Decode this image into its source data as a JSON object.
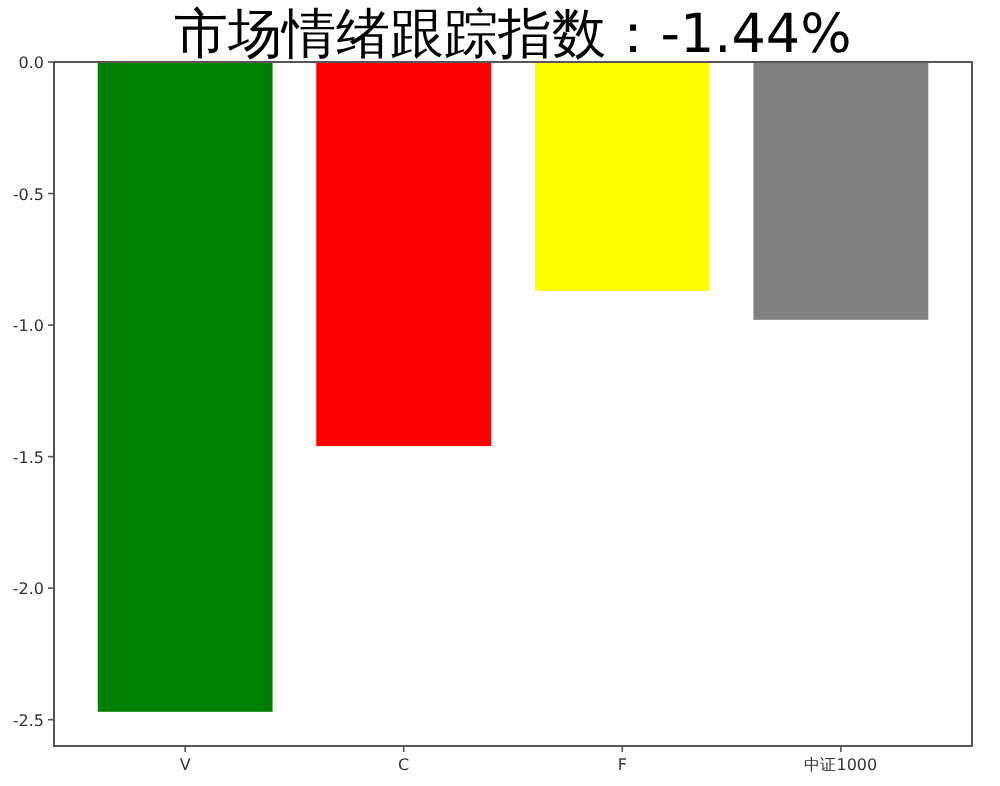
{
  "chart_data": {
    "type": "bar",
    "title": "市场情绪跟踪指数：-1.44%",
    "categories": [
      "V",
      "C",
      "F",
      "中证1000"
    ],
    "values": [
      -2.47,
      -1.46,
      -0.87,
      -0.98
    ],
    "colors": [
      "#008000",
      "#ff0000",
      "#ffff00",
      "#808080"
    ],
    "ylim": [
      -2.6,
      0
    ],
    "yticks": [
      {
        "value": 0,
        "label": "0.0"
      },
      {
        "value": -0.5,
        "label": "-0.5"
      },
      {
        "value": -1,
        "label": "-1.0"
      },
      {
        "value": -1.5,
        "label": "-1.5"
      },
      {
        "value": -2,
        "label": "-2.0"
      },
      {
        "value": -2.5,
        "label": "-2.5"
      }
    ],
    "grid": false
  }
}
